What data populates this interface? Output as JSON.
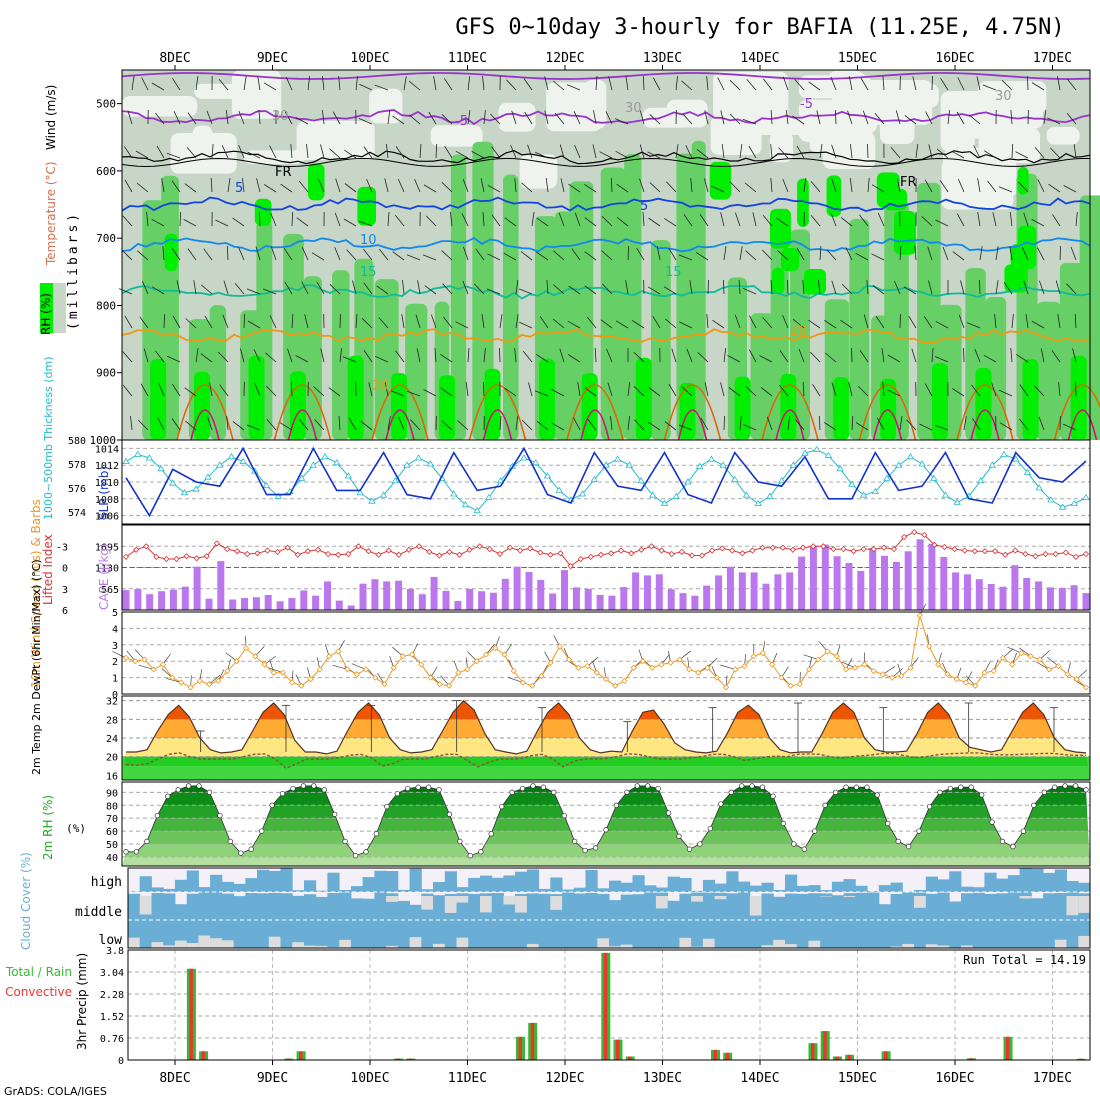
{
  "title": "GFS 0~10day 3-hourly for BAFIA (11.25E, 4.75N)",
  "footer": "GrADS: COLA/IGES",
  "colors": {
    "rh_light": "#dde7dd",
    "rh_mid": "#c8d6c8",
    "rh_green": "#66d066",
    "rh_bright": "#00ee00",
    "temp_purple": "#9933cc",
    "temp_blue_dark": "#1144dd",
    "temp_blue": "#1188ee",
    "temp_teal": "#11bb99",
    "temp_orange": "#ee9911",
    "temp_dark_orange": "#dd6600",
    "temp_magenta": "#cc1177",
    "slp": "#1133cc",
    "thickness": "#22bbcc",
    "lifted": "#dd3333",
    "cape": "#bb77ee",
    "wind10m": "#ee9922",
    "cloud": "#6aaed6",
    "cloud_bg": "#f4f0f8",
    "precip_total": "#33bb33",
    "precip_conv": "#ee3333"
  },
  "chart_data": [
    {
      "id": "upper_air",
      "type": "heatmap",
      "x_ticks": [
        "8DEC",
        "9DEC",
        "10DEC",
        "11DEC",
        "12DEC",
        "13DEC",
        "14DEC",
        "15DEC",
        "16DEC",
        "17DEC"
      ],
      "ylabel": "(millibars)",
      "yticks": [
        500,
        600,
        700,
        800,
        900,
        1000
      ],
      "ylim": [
        450,
        1000
      ],
      "legend_labels": {
        "rh": "RH (%)",
        "temperature": "Temperature (°C)",
        "wind": "Wind (m/s)"
      },
      "contour_labels": [
        "-5",
        "-5",
        "5",
        "5",
        "10",
        "15",
        "15",
        "20",
        "20",
        "FR",
        "FR",
        "30",
        "30",
        "30"
      ],
      "isotherms": [
        {
          "label": "-5",
          "pressure": 520
        },
        {
          "label": "FR",
          "pressure": 580
        },
        {
          "label": "5",
          "pressure": 650
        },
        {
          "label": "10",
          "pressure": 710
        },
        {
          "label": "15",
          "pressure": 780
        },
        {
          "label": "20",
          "pressure": 845
        }
      ]
    },
    {
      "id": "slp_thickness",
      "type": "line",
      "ylabel_left": "1000~500mb Thickness (dm)",
      "ylabel_right": "SLP (mb)",
      "yticks_left": [
        574,
        576,
        578,
        580
      ],
      "ylim_left": [
        573,
        580
      ],
      "yticks_right": [
        1006,
        1008,
        1010,
        1012,
        1014
      ],
      "ylim_right": [
        1005,
        1015
      ],
      "slp": [
        1010.5,
        1007.5,
        1006.0,
        1008.0,
        1011.5,
        1012.5,
        1010.0,
        1007.5,
        1009.5,
        1013.0,
        1014.0,
        1012.0,
        1008.5,
        1007.0,
        1008.5,
        1012.5,
        1014.0,
        1013.0,
        1009.0,
        1007.0,
        1009.0,
        1012.5,
        1013.5,
        1012.0,
        1008.5,
        1006.5,
        1008.0,
        1012.0,
        1013.5,
        1012.5,
        1009.0,
        1008.0,
        1009.5,
        1013.0,
        1014.0,
        1012.0,
        1008.5,
        1006.5,
        1007.5,
        1011.5,
        1013.5,
        1012.5,
        1009.5,
        1007.5,
        1009.0,
        1012.5,
        1013.5,
        1012.0,
        1008.5,
        1005.5,
        1007.5,
        1011.0,
        1013.5,
        1012.5,
        1010.0,
        1008.0,
        1009.5,
        1012.5,
        1013.0,
        1011.5,
        1008.0,
        1006.0,
        1008.0,
        1012.0,
        1013.5,
        1012.0,
        1009.0,
        1007.5,
        1009.5,
        1012.5,
        1013.5,
        1011.5,
        1008.0,
        1006.0,
        1007.5,
        1011.5,
        1013.5,
        1012.5,
        1010.5,
        1009.0,
        1010.0,
        1012.5,
        1012.5
      ],
      "thickness": [
        578.2,
        578.8,
        578.5,
        577.6,
        576.4,
        575.6,
        575.9,
        576.9,
        577.9,
        578.6,
        578.2,
        577.4,
        576.2,
        575.3,
        575.7,
        576.8,
        577.9,
        578.6,
        578.1,
        577.0,
        575.6,
        574.9,
        575.4,
        576.6,
        577.9,
        578.5,
        578.0,
        576.8,
        575.5,
        574.6,
        574.1,
        575.2,
        576.6,
        577.8,
        578.5,
        578.1,
        577.0,
        575.8,
        575.0,
        575.5,
        576.7,
        577.9,
        578.4,
        577.9,
        576.6,
        575.4,
        574.7,
        575.3,
        576.5,
        577.8,
        578.4,
        577.9,
        576.7,
        575.4,
        574.7,
        575.3,
        576.6,
        577.9,
        578.9,
        579.2,
        578.7,
        577.6,
        576.3,
        575.4,
        575.7,
        576.8,
        577.9,
        578.6,
        578.0,
        576.8,
        575.4,
        574.8,
        575.3,
        576.6,
        577.9,
        578.8,
        578.4,
        577.3,
        576.0,
        575.0,
        574.4,
        574.7,
        575.2
      ]
    },
    {
      "id": "cape_li",
      "type": "bar",
      "ylabel_left": "Lifted Index",
      "ylabel_right": "CAPE (J/kg)",
      "yticks_left": [
        -3,
        0,
        3,
        6
      ],
      "ylim_left": [
        6,
        -6
      ],
      "yticks_right": [
        565,
        1130,
        1695
      ],
      "ylim_right": [
        0,
        2260
      ],
      "cape": [
        530,
        560,
        420,
        450,
        500,
        540,
        620,
        680,
        1150,
        300,
        1300,
        1000,
        280,
        320,
        340,
        280,
        400,
        230,
        320,
        460,
        520,
        380,
        300,
        760,
        250,
        120,
        230,
        700,
        820,
        760,
        820,
        780,
        560,
        420,
        700,
        880,
        510,
        240,
        380,
        560,
        500,
        460,
        470,
        830,
        1150,
        900,
        1010,
        800,
        440,
        690,
        1060,
        600,
        560,
        540,
        400,
        380,
        610,
        1230,
        1000,
        920,
        950,
        960,
        550,
        450,
        380,
        320,
        650,
        920,
        1300,
        1150,
        1000,
        1000,
        850,
        700,
        950,
        1000,
        800,
        1420,
        1690,
        1740,
        1500,
        1430,
        1250,
        1040,
        1560,
        1650,
        1440,
        1280,
        950,
        1560,
        1880,
        2040,
        1760,
        1410,
        1000,
        1060,
        950,
        820,
        690,
        720,
        620,
        1190,
        850,
        900,
        760,
        600,
        590,
        730,
        660,
        450,
        350
      ],
      "lifted_index": [
        -1.5,
        -2.5,
        -3.0,
        -1.5,
        -1.2,
        -1.2,
        -1.6,
        -1.3,
        -1.6,
        -3.4,
        -2.6,
        -2.3,
        -1.9,
        -2.0,
        -2.4,
        -2.2,
        -2.8,
        -1.8,
        -2.3,
        -2.5,
        -1.9,
        -1.8,
        -1.9,
        -3.0,
        -2.3,
        -1.8,
        -2.4,
        -1.8,
        -2.5,
        -3.0,
        -2.2,
        -1.7,
        -2.2,
        -1.8,
        -2.5,
        -3.0,
        -2.6,
        -1.9,
        -2.8,
        -2.4,
        -2.7,
        -2.1,
        -1.8,
        -2.0,
        -0.2,
        -1.2,
        -1.5,
        -1.8,
        -2.0,
        -2.4,
        -2.0,
        -2.5,
        -3.0,
        -2.4,
        -1.9,
        -2.2,
        -1.7,
        -1.7,
        -2.4,
        -2.7,
        -2.4,
        -2.0,
        -2.4,
        -2.8,
        -2.8,
        -2.8,
        -2.5,
        -2.8,
        -3.0,
        -3.0,
        -2.6,
        -2.6,
        -2.3,
        -2.6,
        -2.6,
        -2.8,
        -2.6,
        -4.3,
        -5.0,
        -4.6,
        -3.2,
        -2.9,
        -2.6,
        -2.4,
        -2.3,
        -2.3,
        -2.3,
        -1.8,
        -2.4,
        -1.9,
        -1.6,
        -1.9,
        -1.9,
        -2.1,
        -1.5,
        -1.9
      ]
    },
    {
      "id": "wind10m",
      "type": "line",
      "ylabel": "10m Wind Speed (m/s) & Barbs",
      "yticks": [
        0,
        1,
        2,
        3,
        4,
        5
      ],
      "ylim": [
        0,
        5
      ],
      "speed": [
        2.2,
        2.0,
        2.1,
        1.5,
        1.8,
        1.0,
        0.7,
        0.4,
        0.8,
        0.6,
        0.8,
        1.4,
        2.0,
        2.8,
        2.3,
        1.8,
        1.3,
        1.3,
        0.7,
        0.5,
        0.9,
        1.5,
        2.3,
        2.6,
        1.5,
        1.2,
        1.5,
        1.0,
        0.6,
        1.6,
        2.3,
        2.4,
        1.8,
        1.0,
        0.6,
        0.5,
        1.3,
        1.5,
        2.0,
        2.4,
        2.8,
        2.4,
        1.4,
        0.7,
        0.5,
        1.1,
        1.9,
        2.9,
        2.1,
        1.6,
        1.7,
        1.3,
        0.9,
        0.5,
        0.8,
        1.6,
        2.0,
        1.6,
        1.8,
        1.9,
        2.1,
        1.5,
        1.3,
        1.6,
        1.0,
        0.4,
        1.5,
        1.7,
        2.3,
        2.5,
        1.8,
        1.0,
        0.5,
        0.6,
        1.5,
        2.1,
        2.6,
        2.3,
        1.5,
        1.6,
        1.8,
        1.4,
        1.2,
        1.0,
        1.1,
        1.6,
        4.8,
        2.9,
        1.8,
        1.2,
        0.9,
        0.7,
        0.5,
        1.3,
        1.4,
        2.2,
        1.8,
        2.5,
        2.3,
        2.1,
        1.5,
        1.7,
        1.2,
        0.9,
        0.4
      ]
    },
    {
      "id": "temp2m",
      "type": "area",
      "ylabel": "2m Temp 2m DewPt (6hr Min/Max) (°C)",
      "yticks": [
        16,
        20,
        24,
        28,
        32
      ],
      "ylim": [
        15,
        33
      ],
      "temperature": [
        21,
        21,
        21.5,
        25.5,
        29,
        31,
        28.5,
        24,
        21.5,
        20.8,
        21,
        21.5,
        25.5,
        29.5,
        31.5,
        29,
        23.5,
        21,
        21,
        20.6,
        21.2,
        25.5,
        29.5,
        31.5,
        29,
        24,
        21.5,
        20.8,
        21,
        21.5,
        25.5,
        29.5,
        32,
        30,
        25,
        21.5,
        21,
        20.6,
        21.2,
        25.5,
        29.5,
        31.5,
        29,
        24,
        21.5,
        20.8,
        21.2,
        21,
        25.5,
        29.5,
        30,
        27,
        23,
        21.5,
        21,
        20.8,
        21.2,
        25,
        29.5,
        31,
        29,
        24,
        21.5,
        20.8,
        21,
        21,
        25,
        29.5,
        31.5,
        29.5,
        24,
        21.5,
        21,
        21,
        21.2,
        25,
        29.5,
        31.5,
        29,
        24,
        22,
        21.5,
        21,
        21.5,
        25.5,
        29.5,
        31.5,
        29,
        24,
        21.5,
        21,
        20.8
      ],
      "dewpoint": [
        18.3,
        18.2,
        18.5,
        19.5,
        20.5,
        20.8,
        20,
        19.5,
        19.5,
        19.5,
        19.5,
        20,
        20.5,
        20.6,
        19.5,
        17.5,
        18.5,
        19.5,
        19.5,
        19.5,
        19.8,
        20.3,
        20.5,
        19.8,
        18,
        18.5,
        19.5,
        19.5,
        19.5,
        20,
        20.5,
        20.5,
        19.2,
        17.8,
        18.8,
        19.5,
        19.5,
        19.6,
        20.2,
        20.5,
        19.5,
        17.8,
        19,
        19.5,
        19.5,
        19.6,
        20,
        20.6,
        20.5,
        20,
        19.5,
        19.5,
        19.5,
        19.8,
        20,
        20.5,
        20.5,
        20,
        19.2,
        19.5,
        20,
        20.1,
        20,
        20.5,
        20.6,
        20.5,
        20,
        19.7,
        20,
        20.2,
        20.4,
        20.7,
        20.7,
        20.2,
        19.8,
        20,
        20.4,
        20.6,
        20.7,
        20.8,
        20.8,
        20.5,
        20.4,
        20.4,
        20.5,
        20.6,
        20.7,
        20.7,
        20.4,
        20.3,
        20.3
      ],
      "max_6hr": [
        null,
        null,
        null,
        null,
        null,
        null,
        null,
        25.5,
        null,
        null,
        null,
        null,
        null,
        null,
        null,
        31,
        null,
        null,
        null,
        null,
        null,
        null,
        null,
        31,
        null,
        null,
        null,
        null,
        null,
        null,
        null,
        32,
        null,
        null,
        null,
        null,
        null,
        null,
        null,
        30.5,
        null,
        null,
        null,
        null,
        null,
        null,
        null,
        27.5,
        null,
        null,
        null,
        null,
        null,
        null,
        null,
        30.5,
        null,
        null,
        null,
        null,
        null,
        null,
        null,
        31.5,
        null,
        null,
        null,
        null,
        null,
        null,
        null,
        30.5,
        null,
        null,
        null,
        null,
        null,
        null,
        null,
        31.5,
        null,
        null,
        null,
        null,
        null,
        null,
        null,
        30.5,
        null,
        null,
        null
      ]
    },
    {
      "id": "rh2m",
      "type": "area",
      "ylabel": "2m RH (%)",
      "yticks": [
        40,
        50,
        60,
        70,
        80,
        90
      ],
      "ylim": [
        33,
        98
      ],
      "values": [
        44,
        44,
        52,
        72,
        87,
        92,
        95,
        95,
        90,
        72,
        52,
        43,
        46,
        60,
        80,
        89,
        93,
        95,
        95,
        92,
        73,
        52,
        41,
        44,
        58,
        79,
        89,
        93,
        94,
        94,
        92,
        73,
        52,
        41,
        44,
        58,
        79,
        90,
        93,
        95,
        94,
        90,
        72,
        52,
        45,
        47,
        61,
        80,
        90,
        95,
        95,
        93,
        74,
        56,
        46,
        50,
        62,
        81,
        90,
        95,
        95,
        94,
        87,
        66,
        50,
        46,
        60,
        80,
        90,
        94,
        94,
        94,
        88,
        66,
        52,
        48,
        60,
        79,
        90,
        93,
        94,
        94,
        88,
        67,
        52,
        48,
        60,
        80,
        90,
        94,
        95,
        95,
        92
      ]
    },
    {
      "id": "cloud_cover",
      "type": "area",
      "ylabel": "Cloud Cover (%)",
      "layer_labels": [
        "high",
        "middle",
        "low"
      ]
    },
    {
      "id": "precip",
      "type": "bar",
      "ylabel": "3hr Precip (mm)",
      "legend_left": "Total / Rain",
      "legend_left2": "Convective",
      "yticks": [
        0,
        0.76,
        1.52,
        2.28,
        3.04,
        3.8
      ],
      "ylim": [
        0,
        3.8
      ],
      "run_total": "Run Total = 14.19",
      "categories": [
        "8DEC",
        "9DEC",
        "10DEC",
        "11DEC",
        "12DEC",
        "13DEC",
        "14DEC",
        "15DEC",
        "16DEC",
        "17DEC"
      ],
      "events": [
        {
          "step": 5,
          "value": 3.15
        },
        {
          "step": 6,
          "value": 0.3
        },
        {
          "step": 13,
          "value": 0.05
        },
        {
          "step": 14,
          "value": 0.3
        },
        {
          "step": 22,
          "value": 0.05
        },
        {
          "step": 23,
          "value": 0.05
        },
        {
          "step": 32,
          "value": 0.8
        },
        {
          "step": 33,
          "value": 1.28
        },
        {
          "step": 39,
          "value": 3.7
        },
        {
          "step": 40,
          "value": 0.7
        },
        {
          "step": 41,
          "value": 0.12
        },
        {
          "step": 48,
          "value": 0.35
        },
        {
          "step": 49,
          "value": 0.25
        },
        {
          "step": 56,
          "value": 0.58
        },
        {
          "step": 57,
          "value": 1.0
        },
        {
          "step": 58,
          "value": 0.12
        },
        {
          "step": 59,
          "value": 0.18
        },
        {
          "step": 62,
          "value": 0.3
        },
        {
          "step": 69,
          "value": 0.06
        },
        {
          "step": 72,
          "value": 0.8
        },
        {
          "step": 78,
          "value": 0.04
        },
        {
          "step": 86,
          "value": 0.08
        },
        {
          "step": 87,
          "value": 0.06
        }
      ]
    }
  ]
}
